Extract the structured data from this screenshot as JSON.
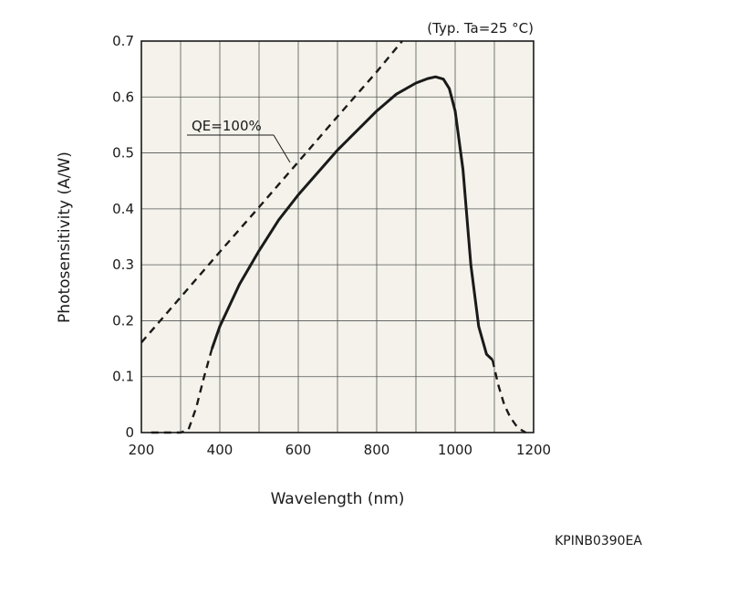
{
  "chart_data": {
    "type": "line",
    "title": "",
    "xlabel": "Wavelength (nm)",
    "ylabel": "Photosensitivity (A/W)",
    "condition_note": "(Typ. Ta=25 °C)",
    "figure_code": "KPINB0390EA",
    "xlim": [
      200,
      1200
    ],
    "ylim": [
      0,
      0.7
    ],
    "x_ticks": [
      "200",
      "400",
      "600",
      "800",
      "1000",
      "1200"
    ],
    "y_ticks": [
      "0",
      "0.1",
      "0.2",
      "0.3",
      "0.4",
      "0.5",
      "0.6",
      "0.7"
    ],
    "grid": true,
    "series": [
      {
        "label": "QE=100%",
        "style": "dashed",
        "x": [
          200,
          300,
          400,
          500,
          600,
          700,
          800,
          865
        ],
        "y": [
          0.161,
          0.242,
          0.323,
          0.403,
          0.484,
          0.565,
          0.645,
          0.7
        ]
      },
      {
        "style": "solid",
        "x": [
          380,
          400,
          450,
          500,
          550,
          600,
          650,
          700,
          750,
          800,
          850,
          900,
          930,
          950,
          970,
          985,
          1000,
          1020,
          1040,
          1060,
          1080,
          1095
        ],
        "y": [
          0.15,
          0.19,
          0.265,
          0.325,
          0.38,
          0.425,
          0.465,
          0.505,
          0.54,
          0.575,
          0.605,
          0.625,
          0.633,
          0.636,
          0.632,
          0.615,
          0.575,
          0.47,
          0.3,
          0.19,
          0.14,
          0.13
        ]
      },
      {
        "style": "dashed",
        "x": [
          225,
          260,
          300,
          320,
          340,
          360,
          380
        ],
        "y": [
          0.0,
          0.0,
          0.0,
          0.005,
          0.045,
          0.1,
          0.15
        ]
      },
      {
        "style": "dashed",
        "x": [
          1095,
          1110,
          1125,
          1140,
          1155,
          1170,
          1180
        ],
        "y": [
          0.13,
          0.085,
          0.05,
          0.028,
          0.013,
          0.004,
          0.0
        ]
      }
    ]
  }
}
